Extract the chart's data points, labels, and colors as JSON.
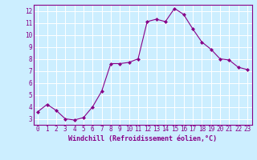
{
  "x": [
    0,
    1,
    2,
    3,
    4,
    5,
    6,
    7,
    8,
    9,
    10,
    11,
    12,
    13,
    14,
    15,
    16,
    17,
    18,
    19,
    20,
    21,
    22,
    23
  ],
  "y": [
    3.6,
    4.2,
    3.7,
    3.0,
    2.9,
    3.1,
    4.0,
    5.3,
    7.6,
    7.6,
    7.7,
    8.0,
    11.1,
    11.3,
    11.1,
    12.2,
    11.7,
    10.5,
    9.4,
    8.8,
    8.0,
    7.9,
    7.3,
    7.1
  ],
  "line_color": "#880088",
  "marker": "D",
  "marker_size": 2.0,
  "bg_color": "#cceeff",
  "grid_color": "#aaddcc",
  "ylim": [
    2.5,
    12.5
  ],
  "xlim": [
    -0.5,
    23.5
  ],
  "yticks": [
    3,
    4,
    5,
    6,
    7,
    8,
    9,
    10,
    11,
    12
  ],
  "xticks": [
    0,
    1,
    2,
    3,
    4,
    5,
    6,
    7,
    8,
    9,
    10,
    11,
    12,
    13,
    14,
    15,
    16,
    17,
    18,
    19,
    20,
    21,
    22,
    23
  ],
  "xlabel": "Windchill (Refroidissement éolien,°C)",
  "axis_color": "#880088",
  "tick_fontsize": 5.5,
  "label_fontsize": 6.0,
  "line_width": 0.8,
  "figsize": [
    3.2,
    2.0
  ],
  "dpi": 100
}
